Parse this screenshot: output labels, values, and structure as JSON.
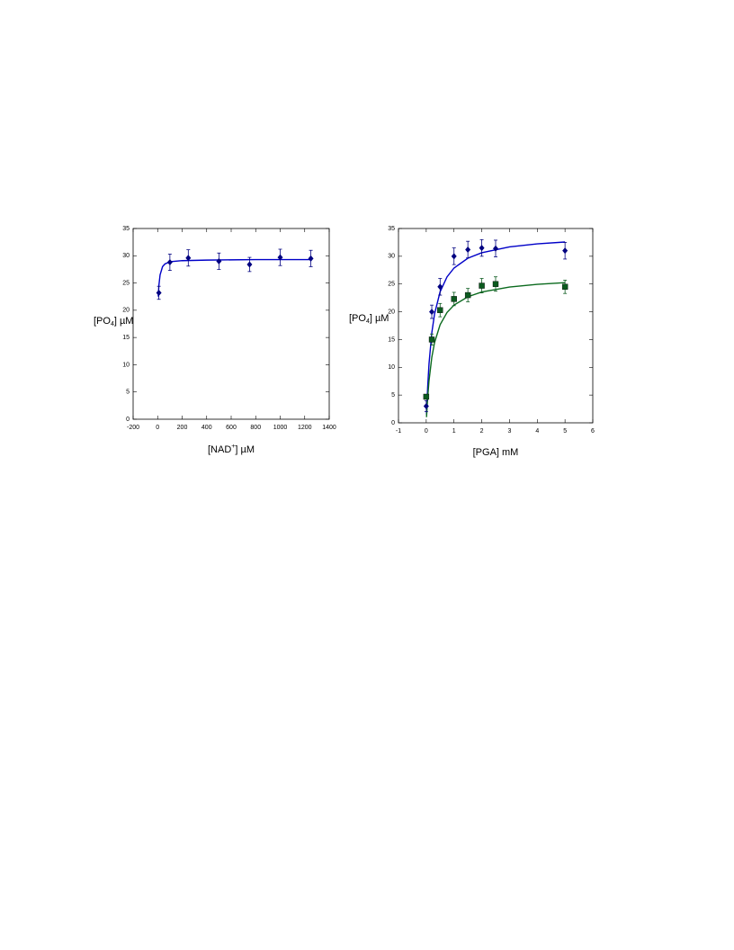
{
  "chart_data": [
    {
      "type": "scatter",
      "x_label": [
        "[NAD",
        "+",
        "] µM"
      ],
      "y_label": [
        "[PO",
        "4",
        "] µM"
      ],
      "xlim": [
        -200,
        1400
      ],
      "xticks": [
        -200,
        0,
        200,
        400,
        600,
        800,
        1000,
        1200,
        1400
      ],
      "ylim": [
        0,
        35
      ],
      "yticks": [
        0,
        5,
        10,
        15,
        20,
        25,
        30,
        35
      ],
      "series": [
        {
          "color": "#000080",
          "marker": "circle",
          "x": [
            10,
            100,
            250,
            500,
            750,
            1000,
            1250
          ],
          "values": [
            23.2,
            28.8,
            29.6,
            29.0,
            28.4,
            29.7,
            29.5
          ],
          "errors": [
            1.2,
            1.5,
            1.5,
            1.5,
            1.3,
            1.5,
            1.5
          ]
        }
      ],
      "fits": [
        {
          "color": "#0000c8",
          "x": [
            5,
            10,
            20,
            40,
            60,
            100,
            200,
            400,
            800,
            1250
          ],
          "values": [
            22.5,
            24.5,
            26.5,
            28.0,
            28.5,
            28.9,
            29.1,
            29.2,
            29.3,
            29.3
          ]
        }
      ]
    },
    {
      "type": "scatter",
      "x_label": [
        "[PGA] mM"
      ],
      "y_label": [
        "[PO",
        "4",
        "] µM"
      ],
      "xlim": [
        -1,
        6
      ],
      "xticks": [
        -1,
        0,
        1,
        2,
        3,
        4,
        5,
        6
      ],
      "ylim": [
        0,
        35
      ],
      "yticks": [
        0,
        5,
        10,
        15,
        20,
        25,
        30,
        35
      ],
      "series": [
        {
          "color": "#000080",
          "marker": "circle",
          "x": [
            0,
            0.2,
            0.5,
            1,
            1.5,
            2,
            2.5,
            5
          ],
          "values": [
            3.0,
            20.0,
            24.5,
            30.0,
            31.2,
            31.5,
            31.4,
            31.0
          ],
          "errors": [
            1.0,
            1.2,
            1.5,
            1.5,
            1.5,
            1.5,
            1.5,
            1.5
          ]
        },
        {
          "color": "#0b5a1e",
          "marker": "square",
          "x": [
            0,
            0.2,
            0.5,
            1,
            1.5,
            2,
            2.5,
            5
          ],
          "values": [
            4.7,
            15.0,
            20.3,
            22.3,
            23.0,
            24.7,
            25.0,
            24.5
          ],
          "errors": [
            0.3,
            1.0,
            1.2,
            1.2,
            1.2,
            1.3,
            1.3,
            1.2
          ]
        }
      ],
      "fits": [
        {
          "color": "#0000c8",
          "x": [
            0.01,
            0.05,
            0.1,
            0.2,
            0.3,
            0.5,
            0.75,
            1,
            1.5,
            2,
            3,
            4,
            5
          ],
          "values": [
            1.48,
            6.3,
            10.63,
            16.19,
            19.62,
            23.61,
            26.29,
            27.87,
            29.65,
            30.63,
            31.68,
            32.23,
            32.57
          ]
        },
        {
          "color": "#0b6a1e",
          "x": [
            0.01,
            0.05,
            0.1,
            0.2,
            0.3,
            0.5,
            0.75,
            1,
            1.5,
            2,
            3,
            4,
            5
          ],
          "values": [
            1.02,
            4.42,
            7.57,
            11.78,
            14.45,
            17.67,
            19.88,
            21.2,
            22.71,
            23.56,
            24.46,
            24.94,
            25.24
          ]
        }
      ]
    }
  ]
}
